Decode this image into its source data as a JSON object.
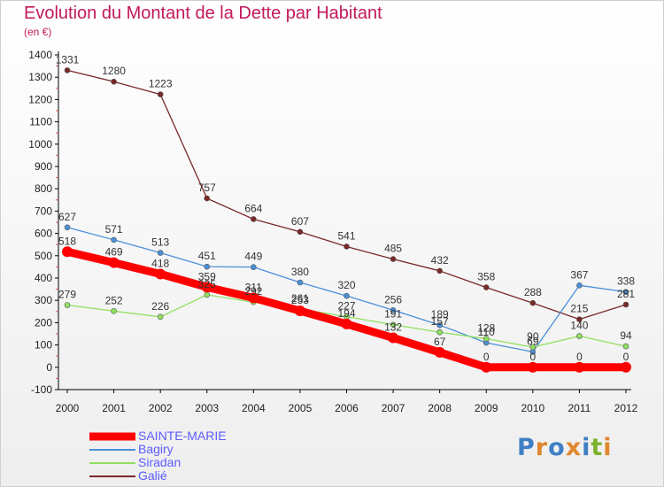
{
  "header": {
    "title": "Evolution du Montant de la Dette par Habitant",
    "subtitle": "(en €)"
  },
  "brand": {
    "logo_text": "Proxiti",
    "logo_colors": [
      "#3f7fc4",
      "#e0862d",
      "#3f7fc4",
      "#e0862d",
      "#3f7fc4",
      "#7db32c",
      "#e0862d"
    ]
  },
  "colors": {
    "SAINTE-MARIE": "#ff0000",
    "Bagiry": "#4a90d9",
    "Siradan": "#90e060",
    "Galié": "#7a2828",
    "title": "#c2185b",
    "legend_text": "#5c5cff"
  },
  "chart_data": {
    "type": "line",
    "title": "Evolution du Montant de la Dette par Habitant",
    "subtitle": "(en €)",
    "xlabel": "",
    "ylabel": "",
    "x": [
      "2000",
      "2001",
      "2002",
      "2003",
      "2004",
      "2005",
      "2006",
      "2007",
      "2008",
      "2009",
      "2010",
      "2011",
      "2012"
    ],
    "ylim": [
      -100,
      1400
    ],
    "yticks": [
      "-100",
      "0",
      "100",
      "200",
      "300",
      "400",
      "500",
      "600",
      "700",
      "800",
      "900",
      "1000",
      "1100",
      "1200",
      "1300",
      "1400"
    ],
    "grid": false,
    "legend_position": "bottom-left",
    "series": [
      {
        "name": "SAINTE-MARIE",
        "values": [
          518,
          469,
          418,
          359,
          311,
          253,
          194,
          132,
          67,
          0,
          0,
          0,
          0
        ],
        "labels": [
          "518",
          "469",
          "418",
          "359",
          "311",
          "253",
          "194",
          "132",
          "67",
          "0",
          "0",
          "0",
          "0"
        ]
      },
      {
        "name": "Bagiry",
        "values": [
          627,
          571,
          513,
          451,
          449,
          380,
          320,
          256,
          189,
          110,
          69,
          367,
          338
        ],
        "labels": [
          "627",
          "571",
          "513",
          "451",
          "449",
          "380",
          "320",
          "256",
          "189",
          "110",
          "69",
          "367",
          "338"
        ]
      },
      {
        "name": "Siradan",
        "values": [
          279,
          252,
          226,
          325,
          292,
          261,
          227,
          191,
          157,
          128,
          90,
          140,
          94
        ],
        "labels": [
          "279",
          "252",
          "226",
          "325",
          "292",
          "261",
          "227",
          "191",
          "157",
          "128",
          "90",
          "140",
          "94"
        ]
      },
      {
        "name": "Galié",
        "values": [
          1331,
          1280,
          1223,
          757,
          664,
          607,
          541,
          485,
          432,
          358,
          288,
          215,
          281
        ],
        "labels": [
          "1331",
          "1280",
          "1223",
          "757",
          "664",
          "607",
          "541",
          "485",
          "432",
          "358",
          "288",
          "215",
          "281"
        ]
      }
    ]
  }
}
